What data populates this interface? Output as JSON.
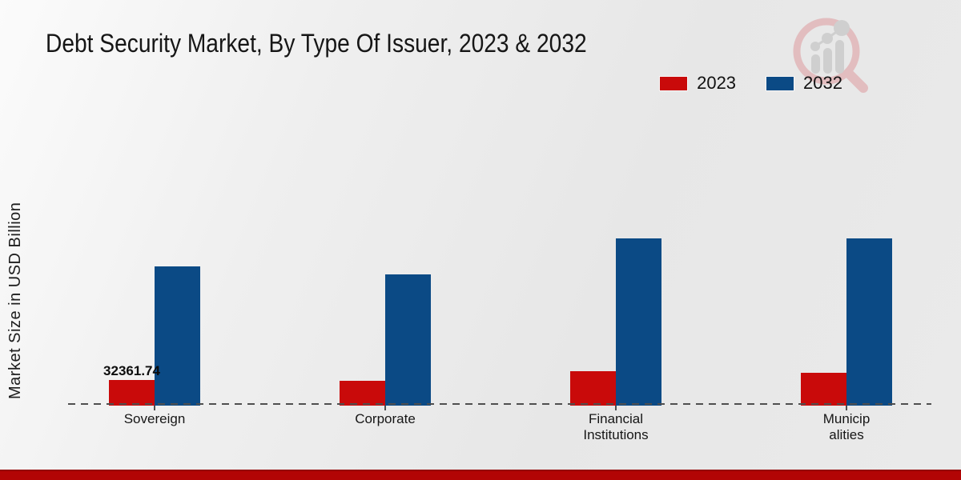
{
  "page": {
    "title": "Debt Security Market, By Type Of Issuer, 2023 & 2032",
    "y_axis_label": "Market Size in USD Billion"
  },
  "legend": {
    "items": [
      {
        "label": "2023",
        "color": "#c90a0a"
      },
      {
        "label": "2032",
        "color": "#0b4a85"
      }
    ]
  },
  "colors": {
    "bar_2023": "#c90a0a",
    "bar_2032": "#0b4a85",
    "bottom_strip": "#b20505",
    "baseline": "#4f4f4f",
    "background": "#eaeaea"
  },
  "chart_data": {
    "type": "bar",
    "title": "Debt Security Market, By Type Of Issuer, 2023 & 2032",
    "xlabel": "",
    "ylabel": "Market Size in USD Billion",
    "categories": [
      "Sovereign",
      "Corporate",
      "Financial Institutions",
      "Municipalities"
    ],
    "category_label_lines": [
      [
        "Sovereign"
      ],
      [
        "Corporate"
      ],
      [
        "Financial",
        "Institutions"
      ],
      [
        "Municip",
        "alities"
      ]
    ],
    "series": [
      {
        "name": "2023",
        "color": "#c90a0a",
        "values": [
          32361.74,
          30500,
          42500,
          40500
        ]
      },
      {
        "name": "2032",
        "color": "#0b4a85",
        "values": [
          174000,
          164000,
          209000,
          209000
        ]
      }
    ],
    "data_labels": [
      {
        "series": "2023",
        "category": "Sovereign",
        "text": "32361.74"
      }
    ],
    "ylim": [
      0,
      220000
    ],
    "grid": false,
    "legend_position": "top-right",
    "baseline_style": "dashed"
  }
}
